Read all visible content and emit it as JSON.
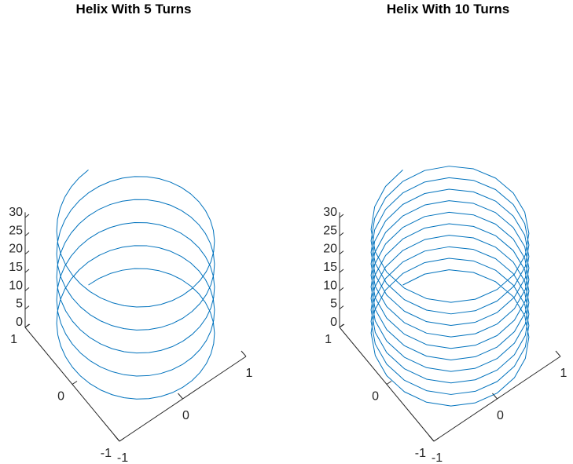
{
  "chart_data": [
    {
      "type": "line3d",
      "title": "Helix With 5 Turns",
      "xlabel": "",
      "ylabel": "",
      "zlabel": "",
      "turns": 5,
      "points_per_turn": 40,
      "series": [
        {
          "equation": "x = sin(t), y = cos(t), z = t",
          "t_range": [
            0,
            31.416
          ],
          "color": "#0072bd"
        }
      ],
      "xlim": [
        -1,
        1
      ],
      "ylim": [
        -1,
        1
      ],
      "zlim": [
        0,
        31.416
      ],
      "x_ticks": [
        "-1",
        "0",
        "1"
      ],
      "y_ticks": [
        "-1",
        "0",
        "1"
      ],
      "z_ticks": [
        "0",
        "5",
        "10",
        "15",
        "20",
        "25",
        "30"
      ],
      "grid": false
    },
    {
      "type": "line3d",
      "title": "Helix With 10 Turns",
      "xlabel": "",
      "ylabel": "",
      "zlabel": "",
      "turns": 10,
      "points_per_turn": 20,
      "series": [
        {
          "equation": "x = sin(t), y = cos(t), z = t/2",
          "t_range": [
            0,
            62.832
          ],
          "color": "#0072bd"
        }
      ],
      "xlim": [
        -1,
        1
      ],
      "ylim": [
        -1,
        1
      ],
      "zlim": [
        0,
        31.416
      ],
      "x_ticks": [
        "-1",
        "0",
        "1"
      ],
      "y_ticks": [
        "-1",
        "0",
        "1"
      ],
      "z_ticks": [
        "0",
        "5",
        "10",
        "15",
        "20",
        "25",
        "30"
      ],
      "grid": false
    }
  ]
}
